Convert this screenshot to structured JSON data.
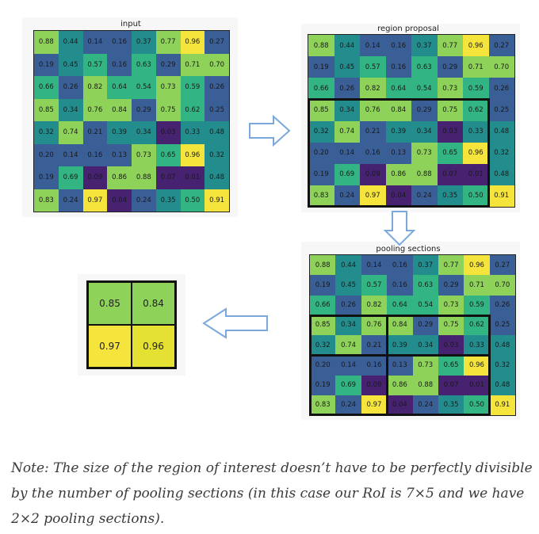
{
  "titles": {
    "input": "input",
    "region_proposal": "region proposal",
    "pooling_sections": "pooling sections"
  },
  "grid_values": [
    [
      "0.88",
      "0.44",
      "0.14",
      "0.16",
      "0.37",
      "0.77",
      "0.96",
      "0.27"
    ],
    [
      "0.19",
      "0.45",
      "0.57",
      "0.16",
      "0.63",
      "0.29",
      "0.71",
      "0.70"
    ],
    [
      "0.66",
      "0.26",
      "0.82",
      "0.64",
      "0.54",
      "0.73",
      "0.59",
      "0.26"
    ],
    [
      "0.85",
      "0.34",
      "0.76",
      "0.84",
      "0.29",
      "0.75",
      "0.62",
      "0.25"
    ],
    [
      "0.32",
      "0.74",
      "0.21",
      "0.39",
      "0.34",
      "0.03",
      "0.33",
      "0.48"
    ],
    [
      "0.20",
      "0.14",
      "0.16",
      "0.13",
      "0.73",
      "0.65",
      "0.96",
      "0.32"
    ],
    [
      "0.19",
      "0.69",
      "0.09",
      "0.86",
      "0.88",
      "0.07",
      "0.01",
      "0.48"
    ],
    [
      "0.83",
      "0.24",
      "0.97",
      "0.04",
      "0.24",
      "0.35",
      "0.50",
      "0.91"
    ]
  ],
  "grid_colors": {
    "high": "#f5e43c",
    "mid_high": "#8ed25a",
    "mid": "#33b583",
    "mid_low": "#238d8d",
    "low": "#3a5e96",
    "lowest": "#462271"
  },
  "region_of_interest": {
    "row_start": 3,
    "row_end": 7,
    "col_start": 0,
    "col_end": 6
  },
  "pooling_split": {
    "row_split_after": 4,
    "col_split_after": 2
  },
  "pooled_output": [
    [
      "0.85",
      "0.84"
    ],
    [
      "0.97",
      "0.96"
    ]
  ],
  "pooled_colors": [
    [
      "#8ed25a",
      "#8ed25a"
    ],
    [
      "#f5e43c",
      "#e4e132"
    ]
  ],
  "arrow_color": "#7ba8dc",
  "note": "Note: The size of the region of interest doesn’t have to be perfectly divisible by the number of pooling sections (in this case our RoI is 7×5 and we have 2×2 pooling sections)."
}
